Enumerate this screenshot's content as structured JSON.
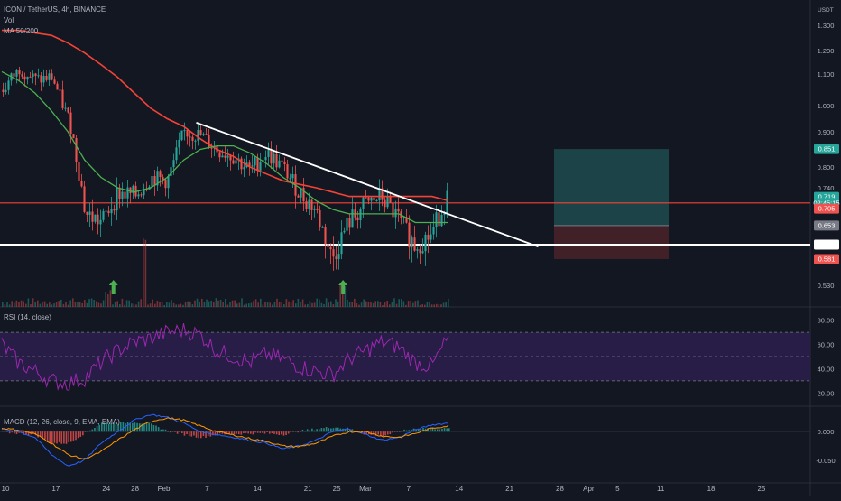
{
  "header": {
    "symbol": "ICON / TetherUS, 4h, BINANCE",
    "vol_label": "Vol",
    "ma_label": "MA 50/200",
    "currency_label": "USDT"
  },
  "colors": {
    "background": "#131722",
    "up_candle": "#26a69a",
    "down_candle": "#ef5350",
    "ma50": "#4caf50",
    "ma200": "#f44336",
    "trendline": "#ffffff",
    "rsi_line": "#9c27b0",
    "rsi_band": "#2a1e4a",
    "macd_line": "#2962ff",
    "signal_line": "#ff9800",
    "arrow": "#4caf50",
    "target_zone": "#1e4b4d",
    "stop_zone": "#4a2328"
  },
  "chart_data": [
    {
      "type": "candlestick",
      "panel": "price",
      "ylim": [
        0.5,
        1.5
      ],
      "y_ticks": [
        "1.300",
        "1.200",
        "1.100",
        "1.000",
        "0.900",
        "0.800",
        "0.740",
        "0.530"
      ],
      "x_ticks": [
        "10",
        "17",
        "24",
        "28",
        "Feb",
        "7",
        "14",
        "21",
        "25",
        "Mar",
        "7",
        "14",
        "21",
        "28",
        "Apr",
        "5",
        "11",
        "18",
        "25"
      ],
      "price_tags": [
        {
          "label": "0.851",
          "value": 0.851,
          "color": "#26a69a"
        },
        {
          "label": "0.719",
          "value": 0.719,
          "color": "#26a69a"
        },
        {
          "label": "02:45:15",
          "value": 0.705,
          "color": "#26a69a"
        },
        {
          "label": "0.705",
          "value": 0.692,
          "color": "#ef5350"
        },
        {
          "label": "0.653",
          "value": 0.653,
          "color": "#787b86"
        },
        {
          "label": "0.609",
          "value": 0.609,
          "color": "#ffffff"
        },
        {
          "label": "0.581",
          "value": 0.581,
          "color": "#ef5350"
        }
      ],
      "horizontal_levels": [
        {
          "value": 0.705,
          "color": "#f44336"
        },
        {
          "value": 0.609,
          "color": "#ffffff"
        }
      ],
      "trendline": {
        "start": [
          "Feb 5",
          0.935
        ],
        "end": [
          "Mar 19",
          0.605
        ]
      },
      "position": {
        "entry": 0.653,
        "target": 0.851,
        "stop": 0.581
      },
      "arrows": [
        "Jan 24",
        "Feb 24"
      ],
      "close_approx": [
        1.05,
        1.12,
        1.08,
        1.09,
        0.95,
        0.68,
        0.66,
        0.73,
        0.72,
        0.77,
        0.76,
        0.9,
        0.89,
        0.85,
        0.83,
        0.79,
        0.84,
        0.8,
        0.73,
        0.69,
        0.58,
        0.66,
        0.7,
        0.72,
        0.67,
        0.61,
        0.63,
        0.72
      ],
      "ma50_approx": [
        1.11,
        1.08,
        1.04,
        0.98,
        0.9,
        0.82,
        0.77,
        0.74,
        0.73,
        0.74,
        0.77,
        0.82,
        0.85,
        0.86,
        0.86,
        0.84,
        0.81,
        0.77,
        0.74,
        0.71,
        0.69,
        0.68,
        0.68,
        0.68,
        0.68,
        0.66,
        0.66,
        0.66
      ],
      "ma200_approx": [
        1.28,
        1.28,
        1.27,
        1.26,
        1.23,
        1.19,
        1.14,
        1.09,
        1.04,
        0.99,
        0.95,
        0.92,
        0.88,
        0.85,
        0.83,
        0.8,
        0.78,
        0.76,
        0.75,
        0.74,
        0.73,
        0.72,
        0.72,
        0.72,
        0.72,
        0.72,
        0.72,
        0.71
      ]
    },
    {
      "type": "line",
      "panel": "rsi",
      "title": "RSI (14, close)",
      "ylim": [
        15,
        85
      ],
      "y_ticks": [
        "80.00",
        "60.00",
        "40.00",
        "20.00"
      ],
      "bands": [
        70,
        50,
        30
      ],
      "values_approx": [
        60,
        45,
        38,
        30,
        28,
        32,
        45,
        55,
        62,
        65,
        70,
        72,
        68,
        55,
        50,
        45,
        52,
        48,
        42,
        38,
        35,
        48,
        55,
        62,
        58,
        45,
        42,
        66
      ]
    },
    {
      "type": "line",
      "panel": "macd",
      "title": "MACD (12, 26, close, 9, EMA, EMA)",
      "ylim": [
        -0.08,
        0.035
      ],
      "y_ticks": [
        "0.000",
        "-0.050"
      ],
      "series": [
        {
          "name": "MACD",
          "values_approx": [
            0.005,
            0.0,
            -0.01,
            -0.04,
            -0.06,
            -0.05,
            -0.02,
            0.0,
            0.02,
            0.03,
            0.025,
            0.015,
            0.0,
            -0.005,
            -0.01,
            -0.015,
            -0.02,
            -0.03,
            -0.025,
            -0.015,
            0.0,
            0.005,
            -0.005,
            -0.015,
            -0.01,
            0.003,
            0.012,
            0.015
          ]
        },
        {
          "name": "Signal",
          "values_approx": [
            0.006,
            0.003,
            -0.004,
            -0.02,
            -0.04,
            -0.048,
            -0.035,
            -0.015,
            0.003,
            0.018,
            0.024,
            0.02,
            0.01,
            0.0,
            -0.006,
            -0.012,
            -0.017,
            -0.025,
            -0.026,
            -0.02,
            -0.008,
            0.0,
            0.0,
            -0.008,
            -0.01,
            -0.003,
            0.006,
            0.01
          ]
        }
      ]
    }
  ]
}
